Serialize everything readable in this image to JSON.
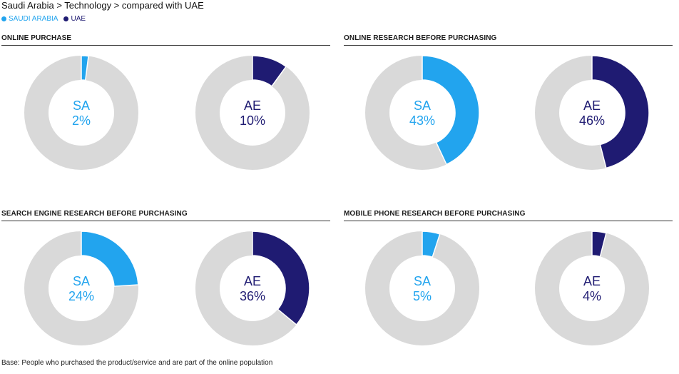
{
  "header": {
    "title": "Saudi Arabia > Technology > compared with UAE"
  },
  "legend": [
    {
      "label": "SAUDI ARABIA",
      "color": "#22a4ee"
    },
    {
      "label": "UAE",
      "color": "#1f1b72"
    }
  ],
  "colors": {
    "track": "#d9d9d9",
    "sa": "#22a4ee",
    "ae": "#1f1b72"
  },
  "chart_data": [
    {
      "type": "pie",
      "title": "ONLINE PURCHASE",
      "series": [
        {
          "name": "SAUDI ARABIA",
          "code": "SA",
          "value": 2,
          "label": "2%"
        },
        {
          "name": "UAE",
          "code": "AE",
          "value": 10,
          "label": "10%"
        }
      ]
    },
    {
      "type": "pie",
      "title": "ONLINE RESEARCH BEFORE PURCHASING",
      "series": [
        {
          "name": "SAUDI ARABIA",
          "code": "SA",
          "value": 43,
          "label": "43%"
        },
        {
          "name": "UAE",
          "code": "AE",
          "value": 46,
          "label": "46%"
        }
      ]
    },
    {
      "type": "pie",
      "title": "SEARCH ENGINE RESEARCH BEFORE PURCHASING",
      "series": [
        {
          "name": "SAUDI ARABIA",
          "code": "SA",
          "value": 24,
          "label": "24%"
        },
        {
          "name": "UAE",
          "code": "AE",
          "value": 36,
          "label": "36%"
        }
      ]
    },
    {
      "type": "pie",
      "title": "MOBILE PHONE RESEARCH BEFORE PURCHASING",
      "series": [
        {
          "name": "SAUDI ARABIA",
          "code": "SA",
          "value": 5,
          "label": "5%"
        },
        {
          "name": "UAE",
          "code": "AE",
          "value": 4,
          "label": "4%"
        }
      ]
    }
  ],
  "footnote": "Base: People who purchased the product/service and are part of the online population"
}
